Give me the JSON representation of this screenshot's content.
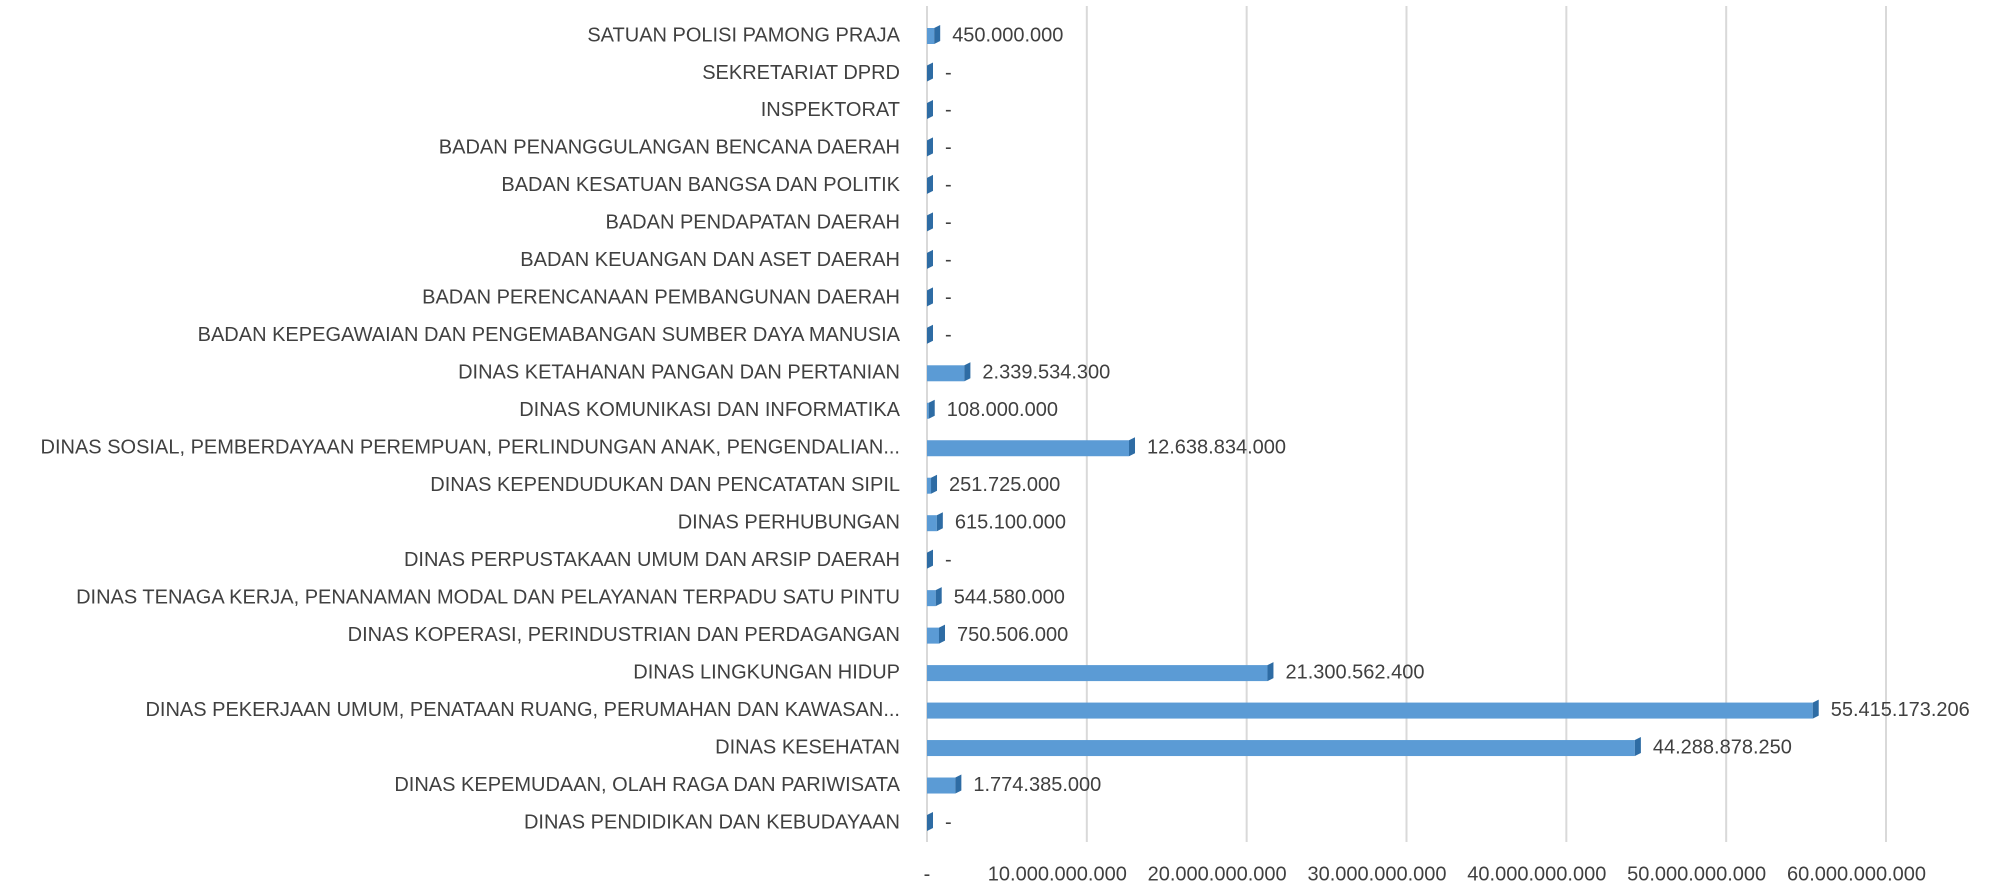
{
  "chart_data": {
    "type": "bar",
    "orientation": "horizontal",
    "categories": [
      "SATUAN POLISI PAMONG PRAJA",
      "SEKRETARIAT DPRD",
      "INSPEKTORAT",
      "BADAN PENANGGULANGAN BENCANA DAERAH",
      "BADAN KESATUAN BANGSA DAN POLITIK",
      "BADAN PENDAPATAN DAERAH",
      "BADAN KEUANGAN DAN ASET DAERAH",
      "BADAN PERENCANAAN PEMBANGUNAN DAERAH",
      "BADAN KEPEGAWAIAN DAN PENGEMABANGAN SUMBER DAYA MANUSIA",
      "DINAS KETAHANAN PANGAN DAN PERTANIAN",
      "DINAS KOMUNIKASI DAN INFORMATIKA",
      "DINAS SOSIAL, PEMBERDAYAAN PEREMPUAN, PERLINDUNGAN ANAK, PENGENDALIAN...",
      "DINAS KEPENDUDUKAN DAN PENCATATAN SIPIL",
      "DINAS PERHUBUNGAN",
      "DINAS PERPUSTAKAAN UMUM DAN ARSIP DAERAH",
      "DINAS TENAGA KERJA, PENANAMAN MODAL DAN PELAYANAN TERPADU SATU PINTU",
      "DINAS KOPERASI, PERINDUSTRIAN DAN PERDAGANGAN",
      "DINAS LINGKUNGAN HIDUP",
      "DINAS PEKERJAAN UMUM, PENATAAN RUANG, PERUMAHAN DAN KAWASAN...",
      "DINAS KESEHATAN",
      "DINAS KEPEMUDAAN, OLAH RAGA DAN PARIWISATA",
      "DINAS PENDIDIKAN DAN KEBUDAYAAN"
    ],
    "values": [
      450000000,
      0,
      0,
      0,
      0,
      0,
      0,
      0,
      0,
      2339534300,
      108000000,
      12638834000,
      251725000,
      615100000,
      0,
      544580000,
      750506000,
      21300562400,
      55415173206,
      44288878250,
      1774385000,
      0
    ],
    "value_labels": [
      "450.000.000",
      "-",
      "-",
      "-",
      "-",
      "-",
      "-",
      "-",
      "-",
      "2.339.534.300",
      "108.000.000",
      "12.638.834.000",
      "251.725.000",
      "615.100.000",
      "-",
      "544.580.000",
      "750.506.000",
      "21.300.562.400",
      "55.415.173.206",
      "44.288.878.250",
      "1.774.385.000",
      "-"
    ],
    "color": "#5b9bd5",
    "xlim": [
      0,
      60000000000
    ],
    "xticks": [
      {
        "value": 0,
        "label": "-"
      },
      {
        "value": 10000000000,
        "label": "10.000.000.000"
      },
      {
        "value": 20000000000,
        "label": "20.000.000.000"
      },
      {
        "value": 30000000000,
        "label": "30.000.000.000"
      },
      {
        "value": 40000000000,
        "label": "40.000.000.000"
      },
      {
        "value": 50000000000,
        "label": "50.000.000.000"
      },
      {
        "value": 60000000000,
        "label": "60.000.000.000"
      }
    ],
    "grid": true
  }
}
